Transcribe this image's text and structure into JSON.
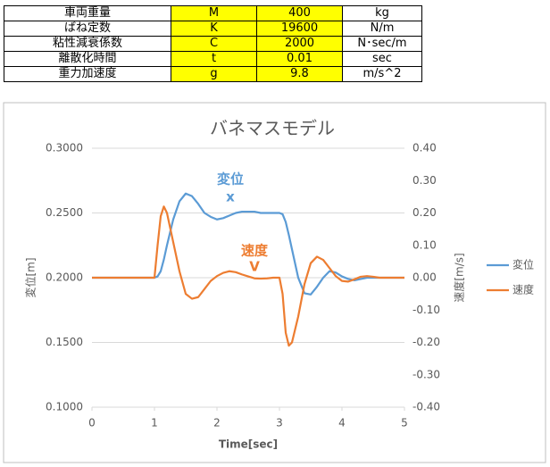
{
  "table": {
    "rows": [
      [
        "車両重量",
        "M",
        400,
        "kg"
      ],
      [
        "ばね定数",
        "K",
        19600,
        "N/m"
      ],
      [
        "粘性減衰係数",
        "C",
        2000,
        "N･sec/m"
      ],
      [
        "離散化時間",
        "t",
        0.01,
        "sec"
      ],
      [
        "重力加速度",
        "g",
        9.8,
        "m/s^2"
      ]
    ]
  },
  "chart_data": {
    "type": "line",
    "title": "バネマスモデル",
    "x_label": "Time[sec]",
    "y_label": "変位[m]",
    "y2_label": "速度[m/s]",
    "x": [
      0,
      0.1,
      0.2,
      0.3,
      0.4,
      0.5,
      0.6,
      0.7,
      0.8,
      0.9,
      1.0,
      1.05,
      1.1,
      1.15,
      1.2,
      1.3,
      1.4,
      1.5,
      1.6,
      1.7,
      1.8,
      1.9,
      2.0,
      2.1,
      2.2,
      2.3,
      2.4,
      2.5,
      2.6,
      2.7,
      2.8,
      2.9,
      3.0,
      3.05,
      3.1,
      3.15,
      3.2,
      3.3,
      3.4,
      3.5,
      3.6,
      3.7,
      3.8,
      3.9,
      4.0,
      4.1,
      4.2,
      4.3,
      4.4,
      4.5,
      4.6,
      4.7,
      4.8,
      4.9,
      5.0
    ],
    "series": [
      {
        "name": "変位",
        "color": "#5b9bd5",
        "values": [
          0.2,
          0.2,
          0.2,
          0.2,
          0.2,
          0.2,
          0.2,
          0.2,
          0.2,
          0.2,
          0.2,
          0.201,
          0.205,
          0.214,
          0.225,
          0.245,
          0.259,
          0.265,
          0.263,
          0.257,
          0.25,
          0.247,
          0.245,
          0.246,
          0.248,
          0.25,
          0.251,
          0.251,
          0.251,
          0.25,
          0.25,
          0.25,
          0.25,
          0.249,
          0.243,
          0.233,
          0.222,
          0.2,
          0.188,
          0.187,
          0.193,
          0.2,
          0.205,
          0.204,
          0.201,
          0.199,
          0.198,
          0.199,
          0.2,
          0.2,
          0.2,
          0.2,
          0.2,
          0.2,
          0.2
        ]
      },
      {
        "name": "速度",
        "color": "#ed7d31",
        "axis": "y2",
        "values": [
          0,
          0,
          0,
          0,
          0,
          0,
          0,
          0,
          0,
          0,
          0,
          0.1,
          0.19,
          0.22,
          0.2,
          0.11,
          0.02,
          -0.05,
          -0.065,
          -0.06,
          -0.035,
          -0.01,
          0.005,
          0.015,
          0.02,
          0.017,
          0.01,
          0.004,
          -0.002,
          -0.003,
          -0.002,
          0,
          0,
          -0.05,
          -0.17,
          -0.21,
          -0.2,
          -0.12,
          -0.02,
          0.045,
          0.065,
          0.055,
          0.03,
          0.005,
          -0.01,
          -0.012,
          -0.005,
          0.003,
          0.005,
          0.003,
          0,
          0,
          0,
          0,
          0
        ]
      }
    ],
    "xlim": [
      0,
      5
    ],
    "xticks": [
      0,
      1,
      2,
      3,
      4,
      5
    ],
    "ylim": [
      0.1,
      0.3
    ],
    "yticks": [
      {
        "value": 0.1,
        "label": "0.1000"
      },
      {
        "value": 0.15,
        "label": "0.1500"
      },
      {
        "value": 0.2,
        "label": "0.2000"
      },
      {
        "value": 0.25,
        "label": "0.2500"
      },
      {
        "value": 0.3,
        "label": "0.3000"
      }
    ],
    "y2lim": [
      -0.4,
      0.4
    ],
    "y2ticks": [
      {
        "value": -0.4,
        "label": "-0.40"
      },
      {
        "value": -0.3,
        "label": "-0.30"
      },
      {
        "value": -0.2,
        "label": "-0.20"
      },
      {
        "value": -0.1,
        "label": "-0.10"
      },
      {
        "value": 0,
        "label": "0.00"
      },
      {
        "value": 0.1,
        "label": "0.10"
      },
      {
        "value": 0.2,
        "label": "0.20"
      },
      {
        "value": 0.3,
        "label": "0.30"
      },
      {
        "value": 0.4,
        "label": "0.40"
      }
    ],
    "grid": true,
    "legend": "right",
    "annotations": [
      {
        "text": "変位",
        "color": "#5b9bd5"
      },
      {
        "text": "x",
        "color": "#5b9bd5"
      },
      {
        "text": "速度",
        "color": "#ed7d31"
      },
      {
        "text": "V",
        "color": "#ed7d31"
      }
    ]
  }
}
